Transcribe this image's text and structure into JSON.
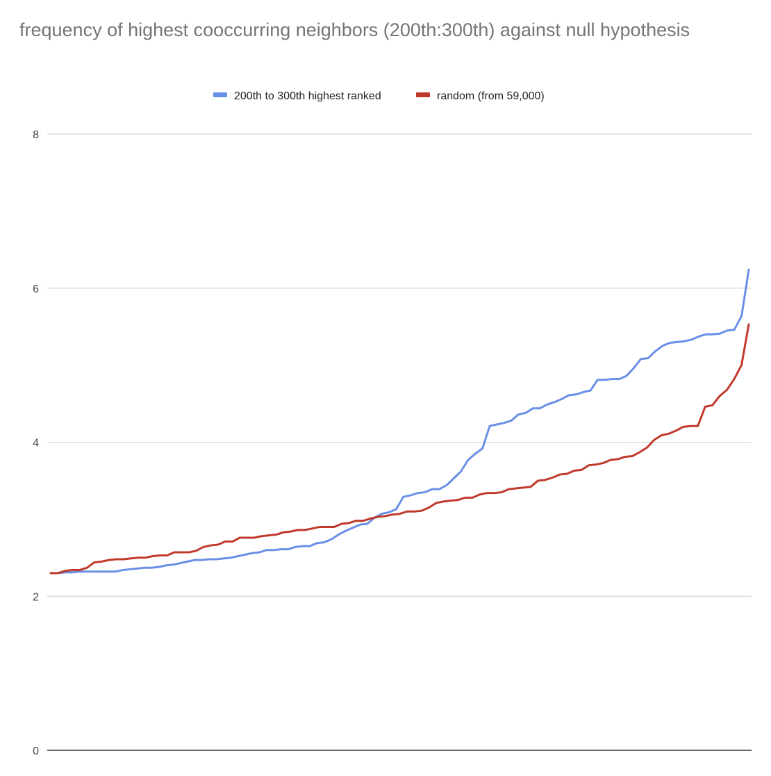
{
  "chart_data": {
    "type": "line",
    "title": "frequency of highest cooccurring neighbors (200th:300th) against null hypothesis",
    "xlabel": "",
    "ylabel": "",
    "ylim": [
      0,
      8
    ],
    "yticks": [
      0,
      2,
      4,
      6,
      8
    ],
    "grid": true,
    "legend_position": "top",
    "series": [
      {
        "name": "200th to 300th highest ranked",
        "color": "#6a8fe6",
        "values": [
          2.3,
          2.3,
          2.31,
          2.31,
          2.32,
          2.32,
          2.32,
          2.32,
          2.32,
          2.32,
          2.34,
          2.35,
          2.36,
          2.37,
          2.37,
          2.38,
          2.4,
          2.41,
          2.43,
          2.45,
          2.47,
          2.47,
          2.48,
          2.48,
          2.49,
          2.5,
          2.52,
          2.54,
          2.56,
          2.57,
          2.6,
          2.6,
          2.61,
          2.61,
          2.64,
          2.65,
          2.65,
          2.69,
          2.7,
          2.74,
          2.8,
          2.85,
          2.89,
          2.93,
          2.94,
          3.02,
          3.07,
          3.09,
          3.13,
          3.29,
          3.31,
          3.34,
          3.35,
          3.39,
          3.39,
          3.44,
          3.53,
          3.62,
          3.77,
          3.85,
          3.92,
          4.21,
          4.23,
          4.25,
          4.28,
          4.36,
          4.38,
          4.44,
          4.44,
          4.49,
          4.52,
          4.56,
          4.61,
          4.62,
          4.65,
          4.67,
          4.81,
          4.81,
          4.82,
          4.82,
          4.86,
          4.96,
          5.08,
          5.09,
          5.18,
          5.25,
          5.29,
          5.3,
          5.31,
          5.33,
          5.37,
          5.4,
          5.4,
          5.41,
          5.45,
          5.46,
          5.64,
          6.24
        ]
      },
      {
        "name": "random (from 59,000)",
        "color": "#c0392b",
        "values": [
          2.3,
          2.3,
          2.33,
          2.34,
          2.34,
          2.37,
          2.44,
          2.45,
          2.47,
          2.48,
          2.48,
          2.49,
          2.5,
          2.5,
          2.52,
          2.53,
          2.53,
          2.57,
          2.57,
          2.57,
          2.59,
          2.64,
          2.66,
          2.67,
          2.71,
          2.71,
          2.76,
          2.76,
          2.76,
          2.78,
          2.79,
          2.8,
          2.83,
          2.84,
          2.86,
          2.86,
          2.88,
          2.9,
          2.9,
          2.9,
          2.94,
          2.95,
          2.98,
          2.98,
          3.01,
          3.03,
          3.04,
          3.06,
          3.07,
          3.1,
          3.1,
          3.11,
          3.15,
          3.21,
          3.23,
          3.24,
          3.25,
          3.28,
          3.28,
          3.32,
          3.34,
          3.34,
          3.35,
          3.39,
          3.4,
          3.41,
          3.42,
          3.5,
          3.51,
          3.54,
          3.58,
          3.59,
          3.63,
          3.64,
          3.7,
          3.71,
          3.73,
          3.77,
          3.78,
          3.81,
          3.82,
          3.87,
          3.93,
          4.03,
          4.09,
          4.11,
          4.15,
          4.2,
          4.21,
          4.21,
          4.46,
          4.48,
          4.6,
          4.68,
          4.82,
          5.0,
          5.53
        ]
      }
    ]
  }
}
